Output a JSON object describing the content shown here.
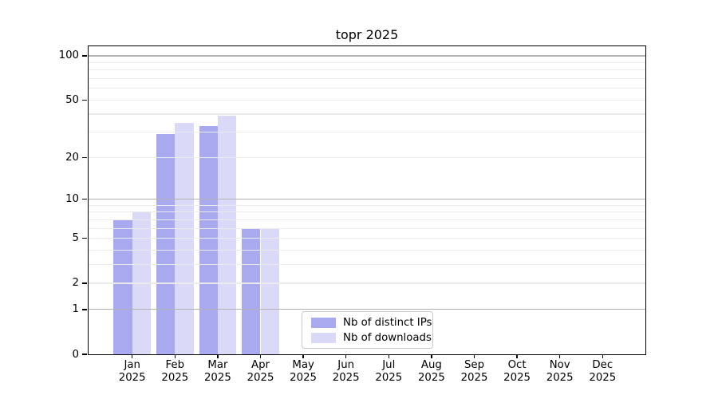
{
  "chart_data": {
    "type": "bar",
    "title": "topr 2025",
    "categories": [
      {
        "month": "Jan",
        "year": "2025"
      },
      {
        "month": "Feb",
        "year": "2025"
      },
      {
        "month": "Mar",
        "year": "2025"
      },
      {
        "month": "Apr",
        "year": "2025"
      },
      {
        "month": "May",
        "year": "2025"
      },
      {
        "month": "Jun",
        "year": "2025"
      },
      {
        "month": "Jul",
        "year": "2025"
      },
      {
        "month": "Aug",
        "year": "2025"
      },
      {
        "month": "Sep",
        "year": "2025"
      },
      {
        "month": "Oct",
        "year": "2025"
      },
      {
        "month": "Nov",
        "year": "2025"
      },
      {
        "month": "Dec",
        "year": "2025"
      }
    ],
    "series": [
      {
        "name": "Nb of distinct IPs",
        "color": "#a9a9f0",
        "values": [
          7,
          29,
          33,
          6,
          0,
          0,
          0,
          0,
          0,
          0,
          0,
          0
        ]
      },
      {
        "name": "Nb of downloads",
        "color": "#dadaf8",
        "values": [
          8,
          35,
          39,
          6,
          0,
          0,
          0,
          0,
          0,
          0,
          0,
          0
        ]
      }
    ],
    "y_axis": {
      "scale": "log10(1+x)",
      "min": 0,
      "max": 116,
      "ticks": [
        0,
        1,
        2,
        5,
        10,
        20,
        50,
        100
      ],
      "major_gridlines": [
        1,
        10,
        100
      ],
      "minor_gridlines": [
        2,
        3,
        4,
        5,
        6,
        7,
        8,
        9,
        20,
        30,
        40,
        50,
        60,
        70,
        80,
        90
      ]
    },
    "x_axis": {
      "tick_label_lines": 2
    },
    "legend": {
      "position": "lower-center",
      "entries": [
        "Nb of distinct IPs",
        "Nb of downloads"
      ]
    },
    "colors": {
      "minor_grid": "#ebebeb",
      "major_grid": "#b2b2b2",
      "axis_box": "#000000",
      "background": "#ffffff",
      "legend_border": "#c8c8c8"
    }
  }
}
